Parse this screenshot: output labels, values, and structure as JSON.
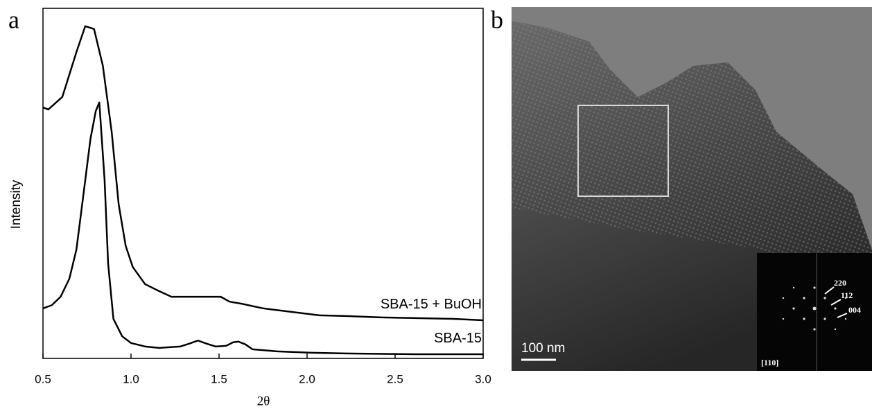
{
  "chart_data": {
    "type": "line",
    "panel_label": "a",
    "x_label": "2θ",
    "y_label": "Intensity",
    "xlim": [
      0.5,
      3.0
    ],
    "ylim": [
      0,
      100
    ],
    "xticks": [
      {
        "value": 0.5,
        "label": "0.5"
      },
      {
        "value": 1,
        "label": "1.0"
      },
      {
        "value": 1.5,
        "label": "1.5"
      },
      {
        "value": 2,
        "label": "2.0"
      },
      {
        "value": 2.5,
        "label": "2.5"
      },
      {
        "value": 3,
        "label": "3.0"
      }
    ],
    "grid": false,
    "series": [
      {
        "name": "SBA-15 + BuOH",
        "color": "#000000",
        "x": [
          0.5,
          0.53,
          0.61,
          0.69,
          0.74,
          0.79,
          0.84,
          0.89,
          0.93,
          0.97,
          1.01,
          1.08,
          1.16,
          1.23,
          1.32,
          1.44,
          1.51,
          1.56,
          1.63,
          1.75,
          1.91,
          2.07,
          2.22,
          2.42,
          2.62,
          2.82,
          3.0
        ],
        "values": [
          71.7,
          71.1,
          74.7,
          87.5,
          94.9,
          94.1,
          83.6,
          64.8,
          44.0,
          32.1,
          26.1,
          21.2,
          19.2,
          17.6,
          17.6,
          17.6,
          17.6,
          16.2,
          15.6,
          14.3,
          13.3,
          12.3,
          12.1,
          11.7,
          11.5,
          11.3,
          10.9
        ]
      },
      {
        "name": "SBA-15",
        "color": "#000000",
        "x": [
          0.5,
          0.55,
          0.6,
          0.65,
          0.69,
          0.73,
          0.77,
          0.8,
          0.82,
          0.85,
          0.87,
          0.9,
          0.95,
          1.0,
          1.08,
          1.16,
          1.28,
          1.33,
          1.38,
          1.43,
          1.48,
          1.54,
          1.58,
          1.61,
          1.65,
          1.69,
          1.83,
          2.03,
          2.22,
          2.62,
          3.0
        ],
        "values": [
          14.3,
          15.2,
          17.6,
          22.8,
          31.1,
          46.9,
          62.8,
          70.7,
          73.1,
          50.9,
          27.1,
          11.3,
          6.3,
          4.4,
          3.4,
          3.0,
          3.4,
          4.2,
          5.1,
          4.2,
          3.4,
          3.6,
          4.6,
          4.8,
          4.0,
          2.6,
          2.0,
          1.6,
          1.4,
          1.2,
          1.2
        ]
      }
    ]
  },
  "image_panel": {
    "panel_label": "b",
    "scale_bar": "100 nm",
    "inset": {
      "spots": [
        "220",
        "112",
        "004"
      ],
      "zone_axis": "[110]"
    }
  }
}
